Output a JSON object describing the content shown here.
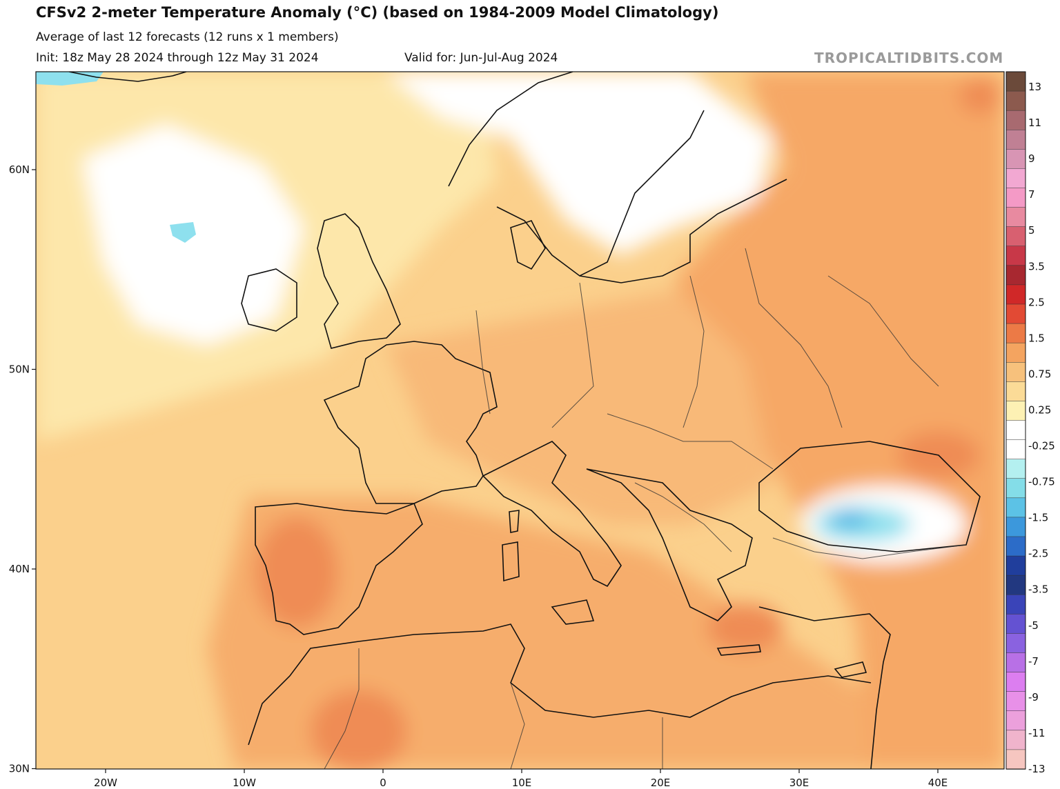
{
  "header": {
    "title": "CFSv2 2-meter Temperature Anomaly (°C) (based on 1984-2009 Model Climatology)",
    "subtitle": "Average of last 12 forecasts (12 runs x 1 members)",
    "init": "Init: 18z May 28 2024 through 12z May 31 2024",
    "valid": "Valid for: Jun-Jul-Aug 2024",
    "watermark": "TROPICALTIDBITS.COM"
  },
  "axes": {
    "lon_ticks": [
      "20W",
      "10W",
      "0",
      "10E",
      "20E",
      "30E",
      "40E"
    ],
    "lat_ticks": [
      "60N",
      "50N",
      "40N",
      "30N"
    ]
  },
  "colorbar": {
    "labels": [
      "13",
      "11",
      "9",
      "7",
      "5",
      "3.5",
      "2.5",
      "1.5",
      "0.75",
      "0.25",
      "-0.25",
      "-0.75",
      "-1.5",
      "-2.5",
      "-3.5",
      "-5",
      "-7",
      "-9",
      "-11",
      "-13"
    ],
    "colors": [
      "#6b4a3a",
      "#8c5a4e",
      "#a86a70",
      "#c08094",
      "#d895b4",
      "#f2a8d2",
      "#f49ac6",
      "#e88aa0",
      "#d86070",
      "#c83848",
      "#a82830",
      "#d02828",
      "#e24a34",
      "#ec7a46",
      "#f4a460",
      "#f7c17c",
      "#fbdb97",
      "#fdf1b4",
      "#ffffff",
      "#ffffff",
      "#b4f0f0",
      "#84dde8",
      "#5cc2e6",
      "#3c98dc",
      "#2c6cc8",
      "#203e9c",
      "#223880",
      "#3a44b8",
      "#6452d2",
      "#8a62e0",
      "#b870e6",
      "#dc7ef0",
      "#e890e8",
      "#eca0dc",
      "#f0b4cc",
      "#f6c6c0"
    ]
  },
  "colors": {
    "ocean_base": "#fcdb98",
    "ocean_mid": "#fbc883",
    "land_warm": "#f6ab6a",
    "land_hot": "#ef8e56",
    "neutral": "#ffffff",
    "cool": "#8ee0ee",
    "cold": "#4ab6e4"
  }
}
